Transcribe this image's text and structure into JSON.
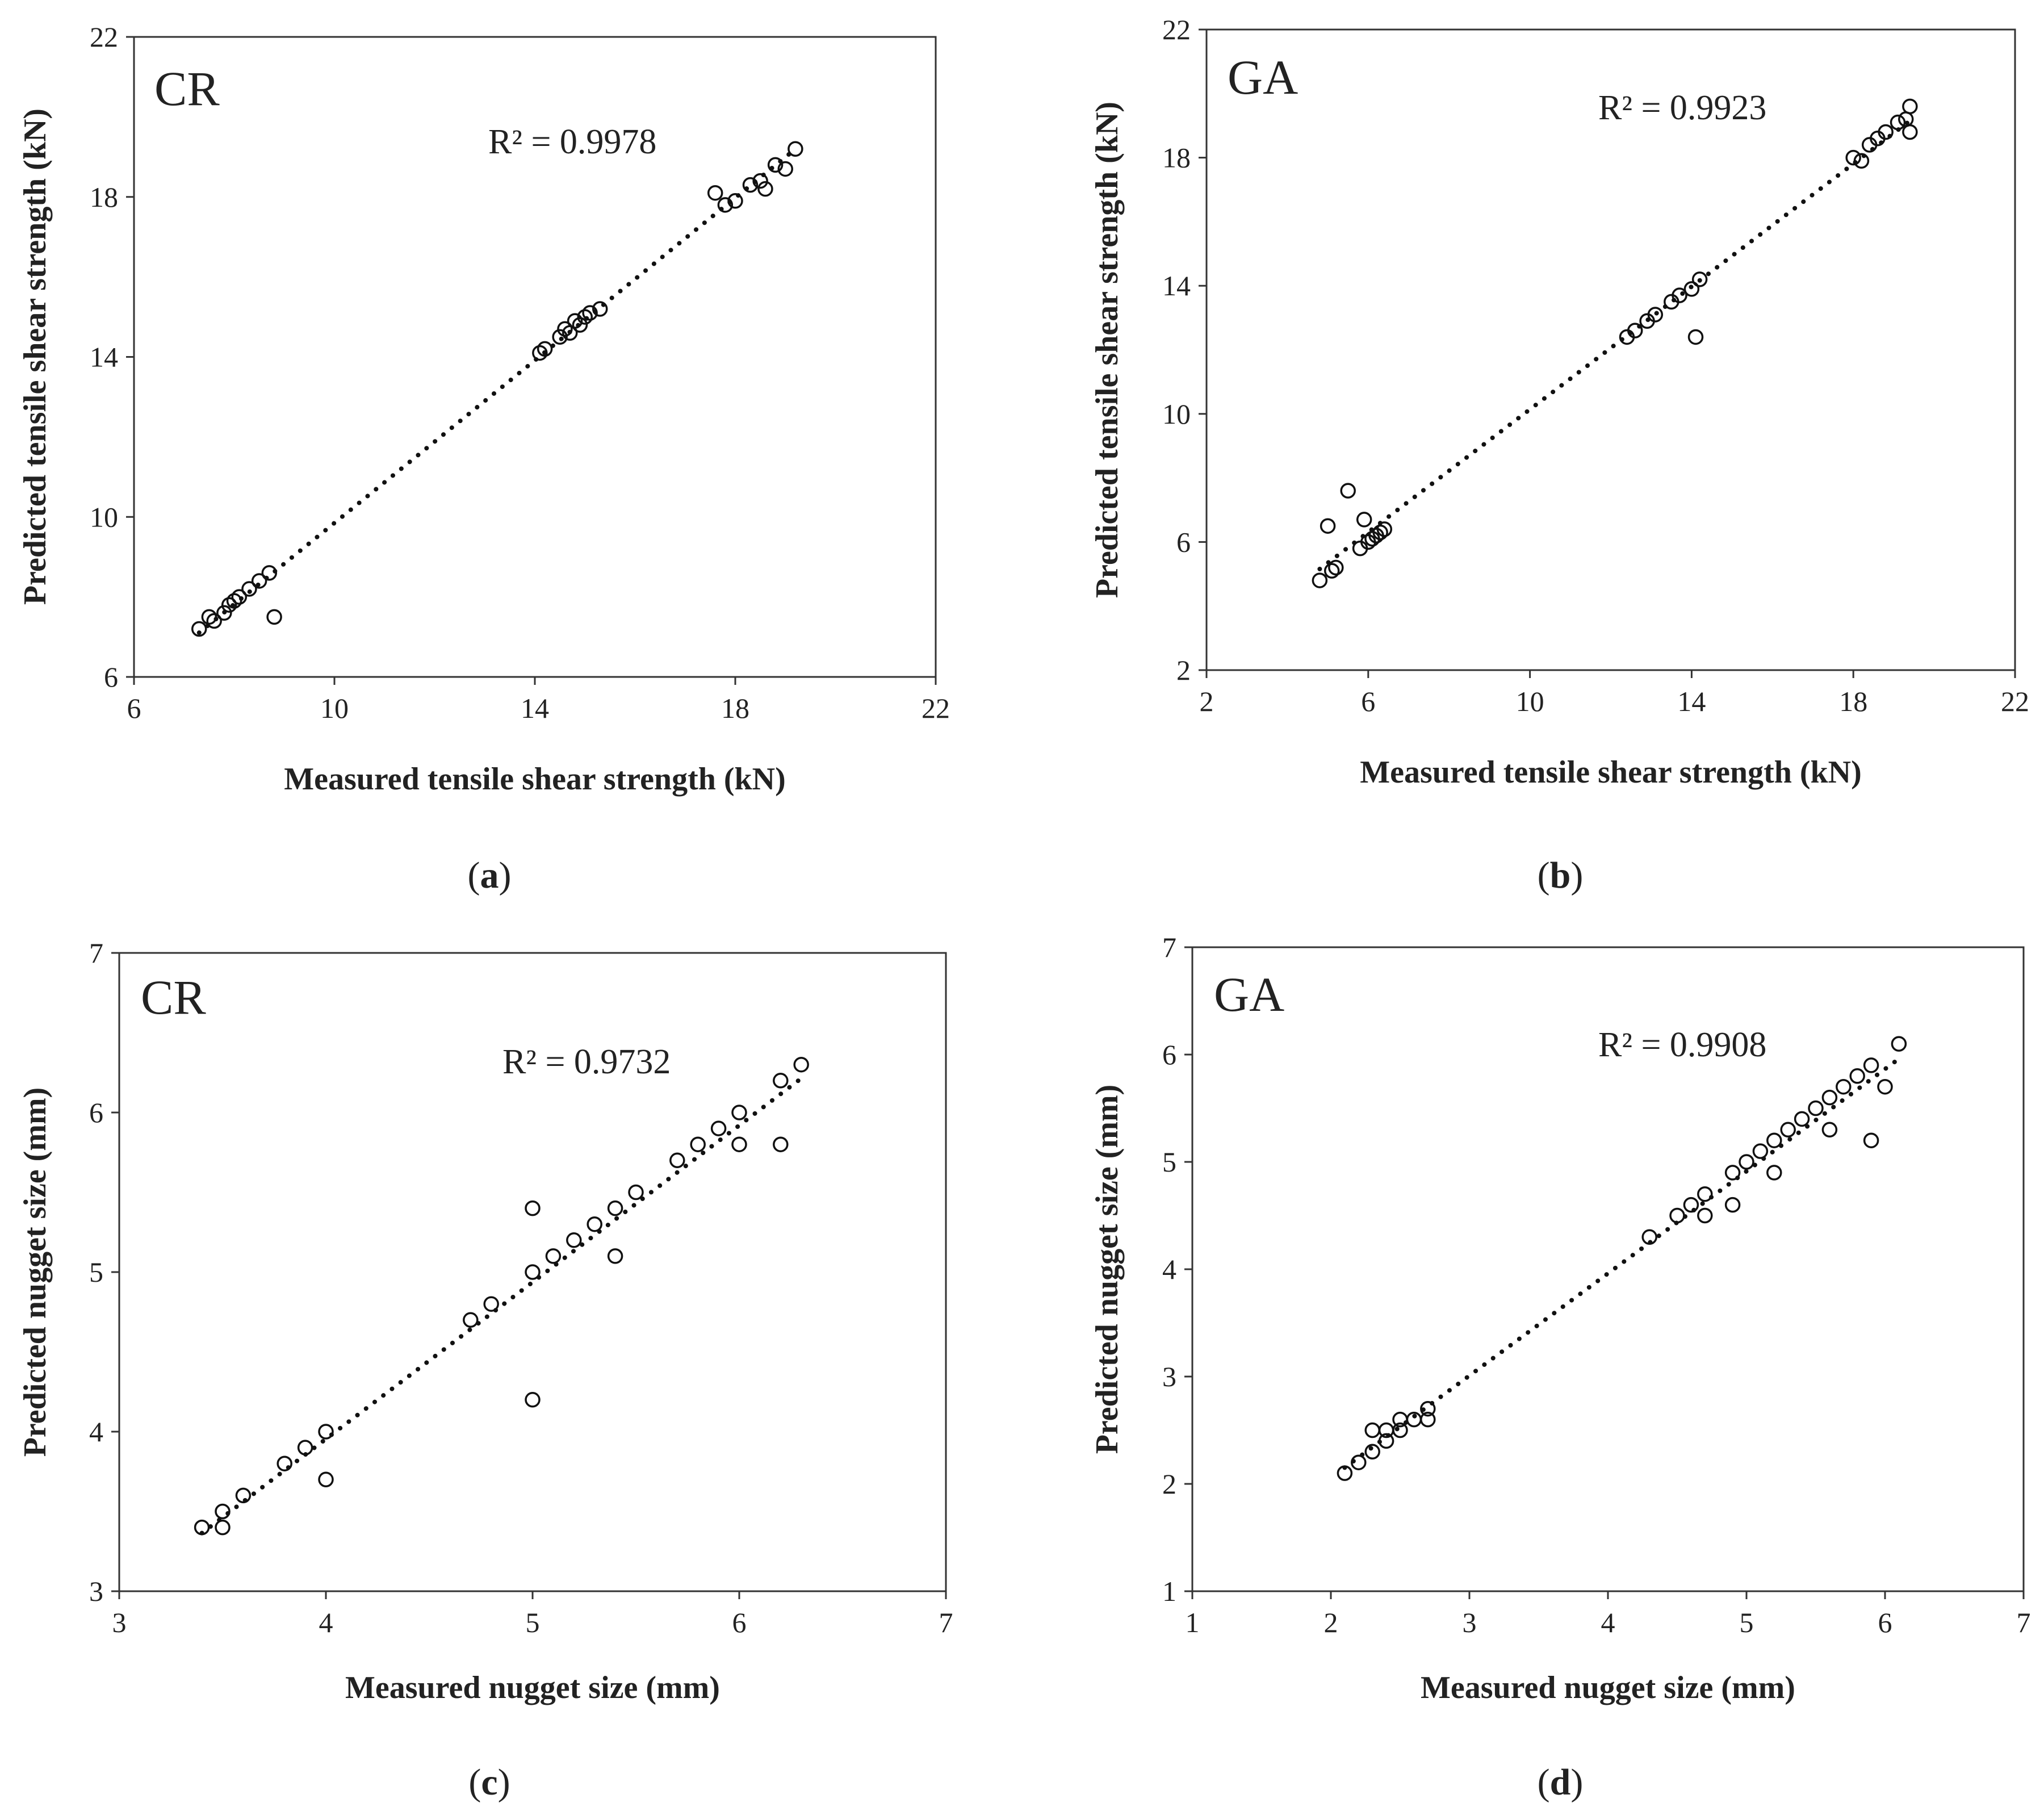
{
  "figure": {
    "panels": [
      {
        "caption": "(a)",
        "caption_letter": "a",
        "tag": "CR",
        "r2": "R² = 0.9978"
      },
      {
        "caption": "(b)",
        "caption_letter": "b",
        "tag": "GA",
        "r2": "R² = 0.9923"
      },
      {
        "caption": "(c)",
        "caption_letter": "c",
        "tag": "CR",
        "r2": "R² = 0.9732"
      },
      {
        "caption": "(d)",
        "caption_letter": "d",
        "tag": "GA",
        "r2": "R² = 0.9908"
      }
    ]
  },
  "chart_data": [
    {
      "type": "scatter",
      "panel": "a",
      "annotation": "CR",
      "r_squared": "R² = 0.9978",
      "xlabel": "Measured tensile shear strength (kN)",
      "ylabel": "Predicted tensile shear strength (kN)",
      "xlim": [
        6,
        22
      ],
      "ylim": [
        6,
        22
      ],
      "xticks": [
        6,
        10,
        14,
        18,
        22
      ],
      "yticks": [
        6,
        10,
        14,
        18,
        22
      ],
      "trendline": "dotted linear",
      "points": [
        [
          7.3,
          7.2
        ],
        [
          7.5,
          7.5
        ],
        [
          7.6,
          7.4
        ],
        [
          7.8,
          7.6
        ],
        [
          7.9,
          7.8
        ],
        [
          8.0,
          7.9
        ],
        [
          8.1,
          8.0
        ],
        [
          8.3,
          8.2
        ],
        [
          8.5,
          8.4
        ],
        [
          8.7,
          8.6
        ],
        [
          8.8,
          7.5
        ],
        [
          14.1,
          14.1
        ],
        [
          14.2,
          14.2
        ],
        [
          14.5,
          14.5
        ],
        [
          14.6,
          14.7
        ],
        [
          14.7,
          14.6
        ],
        [
          14.8,
          14.9
        ],
        [
          14.9,
          14.8
        ],
        [
          15.0,
          15.0
        ],
        [
          15.1,
          15.1
        ],
        [
          15.3,
          15.2
        ],
        [
          17.6,
          18.1
        ],
        [
          17.8,
          17.8
        ],
        [
          18.0,
          17.9
        ],
        [
          18.3,
          18.3
        ],
        [
          18.5,
          18.4
        ],
        [
          18.6,
          18.2
        ],
        [
          18.8,
          18.8
        ],
        [
          19.0,
          18.7
        ],
        [
          19.2,
          19.2
        ]
      ]
    },
    {
      "type": "scatter",
      "panel": "b",
      "annotation": "GA",
      "r_squared": "R² = 0.9923",
      "xlabel": "Measured tensile shear strength (kN)",
      "ylabel": "Predicted tensile shear strength (kN)",
      "xlim": [
        2,
        22
      ],
      "ylim": [
        2,
        22
      ],
      "xticks": [
        2,
        6,
        10,
        14,
        18,
        22
      ],
      "yticks": [
        2,
        6,
        10,
        14,
        18,
        22
      ],
      "trendline": "dotted linear",
      "points": [
        [
          4.8,
          4.8
        ],
        [
          5.0,
          6.5
        ],
        [
          5.1,
          5.1
        ],
        [
          5.2,
          5.2
        ],
        [
          5.5,
          7.6
        ],
        [
          5.8,
          5.8
        ],
        [
          5.9,
          6.7
        ],
        [
          6.0,
          6.0
        ],
        [
          6.1,
          6.1
        ],
        [
          6.2,
          6.2
        ],
        [
          6.3,
          6.3
        ],
        [
          6.4,
          6.4
        ],
        [
          12.4,
          12.4
        ],
        [
          12.6,
          12.6
        ],
        [
          12.9,
          12.9
        ],
        [
          13.1,
          13.1
        ],
        [
          13.5,
          13.5
        ],
        [
          13.7,
          13.7
        ],
        [
          14.0,
          13.9
        ],
        [
          14.1,
          12.4
        ],
        [
          14.2,
          14.2
        ],
        [
          18.0,
          18.0
        ],
        [
          18.2,
          17.9
        ],
        [
          18.4,
          18.4
        ],
        [
          18.6,
          18.6
        ],
        [
          18.8,
          18.8
        ],
        [
          19.1,
          19.1
        ],
        [
          19.3,
          19.2
        ],
        [
          19.4,
          19.6
        ],
        [
          19.4,
          18.8
        ]
      ]
    },
    {
      "type": "scatter",
      "panel": "c",
      "annotation": "CR",
      "r_squared": "R² = 0.9732",
      "xlabel": "Measured nugget size (mm)",
      "ylabel": "Predicted nugget size (mm)",
      "xlim": [
        3,
        7
      ],
      "ylim": [
        3,
        7
      ],
      "xticks": [
        3,
        4,
        5,
        6,
        7
      ],
      "yticks": [
        3,
        4,
        5,
        6,
        7
      ],
      "trendline": "dotted linear",
      "points": [
        [
          3.4,
          3.4
        ],
        [
          3.5,
          3.5
        ],
        [
          3.5,
          3.4
        ],
        [
          3.6,
          3.6
        ],
        [
          3.8,
          3.8
        ],
        [
          3.9,
          3.9
        ],
        [
          4.0,
          4.0
        ],
        [
          4.0,
          3.7
        ],
        [
          4.7,
          4.7
        ],
        [
          4.8,
          4.8
        ],
        [
          5.0,
          5.0
        ],
        [
          5.0,
          5.4
        ],
        [
          5.0,
          4.2
        ],
        [
          5.1,
          5.1
        ],
        [
          5.2,
          5.2
        ],
        [
          5.3,
          5.3
        ],
        [
          5.4,
          5.4
        ],
        [
          5.4,
          5.1
        ],
        [
          5.5,
          5.5
        ],
        [
          5.7,
          5.7
        ],
        [
          5.8,
          5.8
        ],
        [
          5.9,
          5.9
        ],
        [
          6.0,
          6.0
        ],
        [
          6.0,
          5.8
        ],
        [
          6.2,
          6.2
        ],
        [
          6.2,
          5.8
        ],
        [
          6.3,
          6.3
        ]
      ]
    },
    {
      "type": "scatter",
      "panel": "d",
      "annotation": "GA",
      "r_squared": "R² = 0.9908",
      "xlabel": "Measured nugget size (mm)",
      "ylabel": "Predicted nugget size (mm)",
      "xlim": [
        1,
        7
      ],
      "ylim": [
        1,
        7
      ],
      "xticks": [
        1,
        2,
        3,
        4,
        5,
        6,
        7
      ],
      "yticks": [
        1,
        2,
        3,
        4,
        5,
        6,
        7
      ],
      "trendline": "dotted linear",
      "points": [
        [
          2.1,
          2.1
        ],
        [
          2.2,
          2.2
        ],
        [
          2.3,
          2.3
        ],
        [
          2.3,
          2.5
        ],
        [
          2.4,
          2.4
        ],
        [
          2.4,
          2.5
        ],
        [
          2.5,
          2.5
        ],
        [
          2.5,
          2.6
        ],
        [
          2.6,
          2.6
        ],
        [
          2.7,
          2.7
        ],
        [
          2.7,
          2.6
        ],
        [
          4.3,
          4.3
        ],
        [
          4.5,
          4.5
        ],
        [
          4.6,
          4.6
        ],
        [
          4.7,
          4.7
        ],
        [
          4.7,
          4.5
        ],
        [
          4.9,
          4.9
        ],
        [
          4.9,
          4.6
        ],
        [
          5.0,
          5.0
        ],
        [
          5.1,
          5.1
        ],
        [
          5.2,
          5.2
        ],
        [
          5.2,
          4.9
        ],
        [
          5.3,
          5.3
        ],
        [
          5.4,
          5.4
        ],
        [
          5.5,
          5.5
        ],
        [
          5.6,
          5.6
        ],
        [
          5.6,
          5.3
        ],
        [
          5.7,
          5.7
        ],
        [
          5.8,
          5.8
        ],
        [
          5.9,
          5.9
        ],
        [
          5.9,
          5.2
        ],
        [
          6.0,
          5.7
        ],
        [
          6.1,
          6.1
        ]
      ]
    }
  ]
}
